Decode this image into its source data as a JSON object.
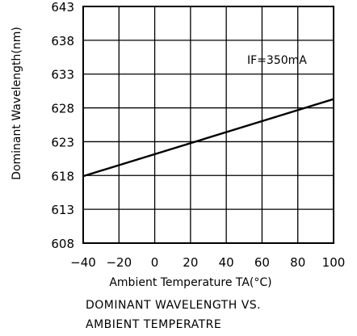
{
  "chart_data": {
    "type": "line",
    "title": "",
    "xlabel": "Ambient Temperature TA(°C)",
    "ylabel": "Dominant Wavelength(nm)",
    "xlim": [
      -40,
      100
    ],
    "ylim": [
      608,
      643
    ],
    "x_ticks": [
      -40,
      -20,
      0,
      20,
      40,
      60,
      80,
      100
    ],
    "x_tick_labels": [
      "−40",
      "−20",
      "0",
      "20",
      "40",
      "60",
      "80",
      "100"
    ],
    "y_ticks": [
      608,
      613,
      618,
      623,
      628,
      633,
      638,
      643
    ],
    "y_tick_labels": [
      "608",
      "613",
      "618",
      "623",
      "628",
      "633",
      "638",
      "643"
    ],
    "grid": true,
    "series": [
      {
        "x": [
          -40,
          100
        ],
        "y": [
          617.9,
          629.3
        ]
      }
    ],
    "annotations": [
      {
        "text": "IF=350mA"
      }
    ],
    "line_color": "#000000",
    "grid_color": "#000000"
  },
  "caption": {
    "line1": "DOMINANT WAVELENGTH VS.",
    "line2": "AMBIENT TEMPERATRE"
  }
}
